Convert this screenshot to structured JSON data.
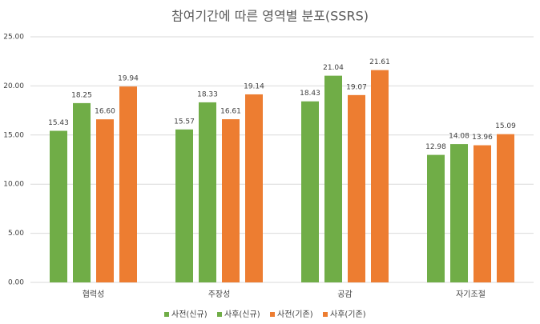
{
  "chart_data": {
    "type": "bar",
    "title": "참여기간에 따른 영역별 분포(SSRS)",
    "categories": [
      "협력성",
      "주장성",
      "공감",
      "자기조절"
    ],
    "series": [
      {
        "name": "사전(신규)",
        "color": "#70ad47",
        "values": [
          15.43,
          15.57,
          18.43,
          12.98
        ],
        "value_labels": [
          "15.43",
          "15.57",
          "18.43",
          "12.98"
        ]
      },
      {
        "name": "사후(신규)",
        "color": "#70ad47",
        "values": [
          18.25,
          18.33,
          21.04,
          14.08
        ],
        "value_labels": [
          "18.25",
          "18.33",
          "21.04",
          "14.08"
        ]
      },
      {
        "name": "사전(기존)",
        "color": "#ed7d31",
        "values": [
          16.6,
          16.61,
          19.07,
          13.96
        ],
        "value_labels": [
          "16.60",
          "16.61",
          "19.07",
          "13.96"
        ]
      },
      {
        "name": "사후(기존)",
        "color": "#ed7d31",
        "values": [
          19.94,
          19.14,
          21.61,
          15.09
        ],
        "value_labels": [
          "19.94",
          "19.14",
          "21.61",
          "15.09"
        ]
      }
    ],
    "ylim": [
      0,
      25
    ],
    "yticks": [
      {
        "value": 0,
        "label": "0.00"
      },
      {
        "value": 5,
        "label": "5.00"
      },
      {
        "value": 10,
        "label": "10.00"
      },
      {
        "value": 15,
        "label": "15.00"
      },
      {
        "value": 20,
        "label": "20.00"
      },
      {
        "value": 25,
        "label": "25.00"
      }
    ],
    "grid": true,
    "legend": "bottom"
  }
}
